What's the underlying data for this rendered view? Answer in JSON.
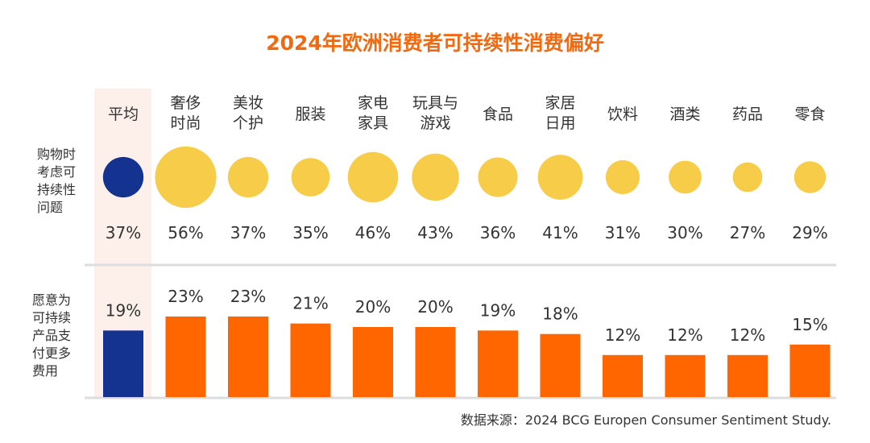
{
  "chart_data": {
    "type": "bar",
    "title": "2024年欧洲消费者可持续性消费偏好",
    "categories": [
      [
        "平均"
      ],
      [
        "奢侈",
        "时尚"
      ],
      [
        "美妆",
        "个护"
      ],
      [
        "服装"
      ],
      [
        "家电",
        "家具"
      ],
      [
        "玩具与",
        "游戏"
      ],
      [
        "食品"
      ],
      [
        "家居",
        "日用"
      ],
      [
        "饮料"
      ],
      [
        "酒类"
      ],
      [
        "药品"
      ],
      [
        "零食"
      ]
    ],
    "series": [
      {
        "name": "购物时考虑可持续性问题",
        "chart": "bubble",
        "values": [
          37,
          56,
          37,
          35,
          46,
          43,
          36,
          41,
          31,
          30,
          27,
          29
        ]
      },
      {
        "name": "愿意为可持续产品支付更多费用",
        "chart": "bar",
        "values": [
          19,
          23,
          23,
          21,
          20,
          20,
          19,
          18,
          12,
          12,
          12,
          15
        ]
      }
    ],
    "row_labels": [
      [
        "购物时",
        "考虑可",
        "持续性",
        "问题"
      ],
      [
        "愿意为",
        "可持续",
        "产品支",
        "付更多",
        "费用"
      ]
    ],
    "unit": "%",
    "highlight_category": "平均",
    "colors": {
      "average": "#143391",
      "bubble": "#f6cc48",
      "bar": "#ff6600",
      "highlight_band": "#fdf0ea",
      "title": "#f26a10",
      "divider": "#dddddd"
    },
    "source": "数据来源：2024 BCG Europen Consumer Sentiment Study."
  }
}
